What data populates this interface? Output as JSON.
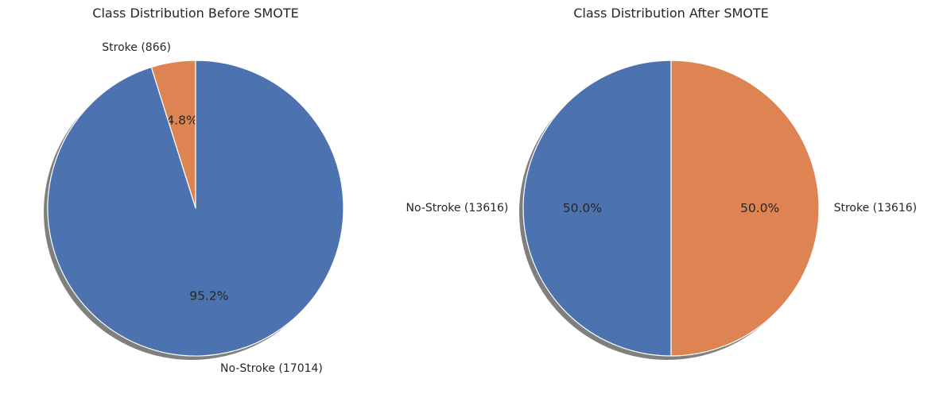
{
  "chart_data": [
    {
      "type": "pie",
      "title": "Class Distribution Before SMOTE",
      "start_angle_deg": 90,
      "direction": "counterclockwise",
      "shadow": true,
      "slices": [
        {
          "label": "Stroke (866)",
          "value": 866,
          "pct_label": "4.8%",
          "color": "#dd8452"
        },
        {
          "label": "No-Stroke (17014)",
          "value": 17014,
          "pct_label": "95.2%",
          "color": "#4c72b0"
        }
      ]
    },
    {
      "type": "pie",
      "title": "Class Distribution After SMOTE",
      "start_angle_deg": 90,
      "direction": "counterclockwise",
      "shadow": true,
      "slices": [
        {
          "label": "No-Stroke (13616)",
          "value": 13616,
          "pct_label": "50.0%",
          "color": "#4c72b0"
        },
        {
          "label": "Stroke (13616)",
          "value": 13616,
          "pct_label": "50.0%",
          "color": "#dd8452"
        }
      ]
    }
  ]
}
